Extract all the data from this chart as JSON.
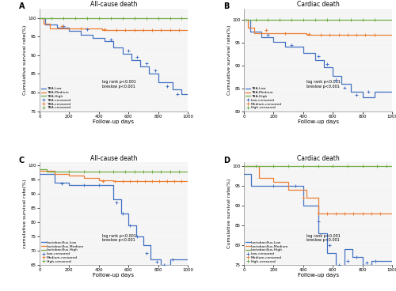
{
  "panels": [
    {
      "label": "A",
      "title": "All-cause death",
      "xlabel": "Follow-up days",
      "ylabel": "Cumulative survival rate(%)",
      "xlim": [
        0,
        1000
      ],
      "ylim": [
        0.75,
        1.025
      ],
      "yticks": [
        0.75,
        0.8,
        0.85,
        0.9,
        0.95,
        1.0
      ],
      "ytick_labels": [
        "75",
        "80",
        "85",
        "90",
        "95",
        "100"
      ],
      "xticks": [
        0,
        200,
        400,
        600,
        800,
        1000
      ],
      "lines": [
        {
          "name": "TBA-Low",
          "color": "#4472C4",
          "x": [
            0,
            40,
            40,
            120,
            120,
            200,
            200,
            280,
            280,
            360,
            360,
            440,
            440,
            500,
            500,
            560,
            560,
            620,
            620,
            680,
            680,
            740,
            740,
            800,
            800,
            900,
            900,
            960,
            960,
            1000
          ],
          "y": [
            1.0,
            1.0,
            0.983,
            0.983,
            0.974,
            0.974,
            0.965,
            0.965,
            0.956,
            0.956,
            0.947,
            0.947,
            0.938,
            0.938,
            0.92,
            0.92,
            0.905,
            0.905,
            0.888,
            0.888,
            0.87,
            0.87,
            0.852,
            0.852,
            0.828,
            0.828,
            0.808,
            0.808,
            0.795,
            0.795
          ]
        },
        {
          "name": "TBA-Medium",
          "color": "#ED7D31",
          "x": [
            0,
            25,
            25,
            70,
            70,
            420,
            420,
            1000
          ],
          "y": [
            1.0,
            1.0,
            0.984,
            0.984,
            0.972,
            0.972,
            0.967,
            0.967
          ]
        },
        {
          "name": "TBA-High",
          "color": "#70AD47",
          "x": [
            0,
            1000
          ],
          "y": [
            1.0,
            1.0
          ]
        }
      ],
      "censored": [
        {
          "color": "#4472C4",
          "x": [
            160,
            320,
            480,
            600,
            660,
            720,
            780,
            860,
            930
          ],
          "y": [
            0.978,
            0.969,
            0.942,
            0.912,
            0.896,
            0.879,
            0.86,
            0.818,
            0.795
          ]
        },
        {
          "color": "#ED7D31",
          "x": [
            150,
            280,
            440,
            520,
            580,
            640,
            700,
            760,
            820,
            880,
            940
          ],
          "y": [
            0.978,
            0.972,
            0.969,
            0.967,
            0.967,
            0.967,
            0.967,
            0.967,
            0.967,
            0.967,
            0.967
          ]
        },
        {
          "color": "#70AD47",
          "x": [
            80,
            160,
            240,
            320,
            400,
            480,
            560,
            640,
            720,
            800,
            880,
            960
          ],
          "y": [
            1.0,
            1.0,
            1.0,
            1.0,
            1.0,
            1.0,
            1.0,
            1.0,
            1.0,
            1.0,
            1.0,
            1.0
          ]
        }
      ],
      "legend_lines": [
        "TBA-Low",
        "TBA-Medium",
        "TBA-High"
      ],
      "legend_censored": [
        "TBA-censored",
        "TBA-censored",
        "TBA-censored"
      ],
      "stat_text": "log rank p<0.001\nbreslow p<0.001",
      "stat_x": 0.42,
      "stat_y": 0.22
    },
    {
      "label": "B",
      "title": "Cardiac death",
      "xlabel": "Follow-up days",
      "ylabel": "Cumulative survival rate(%)",
      "xlim": [
        0,
        1000
      ],
      "ylim": [
        0.8,
        1.025
      ],
      "yticks": [
        0.8,
        0.85,
        0.9,
        0.95,
        1.0
      ],
      "ytick_labels": [
        "80",
        "85",
        "90",
        "95",
        "100"
      ],
      "xticks": [
        0,
        200,
        400,
        600,
        800,
        1000
      ],
      "lines": [
        {
          "name": "TBA-Low",
          "color": "#4472C4",
          "x": [
            0,
            40,
            40,
            120,
            120,
            200,
            200,
            280,
            280,
            400,
            400,
            480,
            480,
            540,
            540,
            600,
            600,
            660,
            660,
            720,
            720,
            800,
            800,
            880,
            880,
            1000
          ],
          "y": [
            1.0,
            1.0,
            0.974,
            0.974,
            0.963,
            0.963,
            0.952,
            0.952,
            0.941,
            0.941,
            0.928,
            0.928,
            0.913,
            0.913,
            0.896,
            0.896,
            0.878,
            0.878,
            0.86,
            0.86,
            0.843,
            0.843,
            0.83,
            0.83,
            0.843,
            0.843
          ]
        },
        {
          "name": "TBA-Medium",
          "color": "#ED7D31",
          "x": [
            0,
            25,
            25,
            70,
            70,
            420,
            420,
            1000
          ],
          "y": [
            1.0,
            1.0,
            0.984,
            0.984,
            0.972,
            0.972,
            0.967,
            0.967
          ]
        },
        {
          "name": "TBA-High",
          "color": "#70AD47",
          "x": [
            0,
            1000
          ],
          "y": [
            1.0,
            1.0
          ]
        }
      ],
      "censored": [
        {
          "color": "#4472C4",
          "x": [
            160,
            320,
            500,
            560,
            620,
            680,
            760,
            840
          ],
          "y": [
            0.968,
            0.946,
            0.92,
            0.904,
            0.869,
            0.851,
            0.836,
            0.843
          ]
        },
        {
          "color": "#ED7D31",
          "x": [
            150,
            280,
            440,
            520,
            580,
            640,
            700,
            760,
            820,
            880
          ],
          "y": [
            0.978,
            0.972,
            0.969,
            0.967,
            0.967,
            0.967,
            0.967,
            0.967,
            0.967,
            0.967
          ]
        },
        {
          "color": "#70AD47",
          "x": [
            80,
            160,
            240,
            320,
            400,
            480,
            560,
            640,
            720,
            800,
            880
          ],
          "y": [
            1.0,
            1.0,
            1.0,
            1.0,
            1.0,
            1.0,
            1.0,
            1.0,
            1.0,
            1.0,
            1.0
          ]
        }
      ],
      "legend_lines": [
        "TBA-Low",
        "TBA-Medium",
        "TBA-High"
      ],
      "legend_censored": [
        "Low-censored",
        "Medium-censored",
        "High-censored"
      ],
      "stat_text": "log rank p<0.001\nbreslow p<0.001",
      "stat_x": 0.42,
      "stat_y": 0.22
    },
    {
      "label": "C",
      "title": "All-cause death",
      "xlabel": "Follow-up days",
      "ylabel": "cumulative survival rate(%)",
      "xlim": [
        0,
        1000
      ],
      "ylim": [
        65,
        101
      ],
      "yticks": [
        65,
        70,
        75,
        80,
        85,
        90,
        95,
        100
      ],
      "ytick_labels": [
        "65",
        "70",
        "75",
        "80",
        "85",
        "90",
        "95",
        "100"
      ],
      "xticks": [
        0,
        200,
        400,
        600,
        800,
        1000
      ],
      "lines": [
        {
          "name": "Lactobacillus-Low",
          "color": "#4472C4",
          "x": [
            0,
            100,
            100,
            200,
            200,
            500,
            500,
            550,
            550,
            600,
            600,
            650,
            650,
            700,
            700,
            750,
            750,
            820,
            820,
            880,
            880,
            1000
          ],
          "y": [
            97,
            97,
            94,
            94,
            93,
            93,
            88,
            88,
            83,
            83,
            79,
            79,
            75,
            75,
            72,
            72,
            67,
            67,
            65,
            65,
            67,
            67
          ]
        },
        {
          "name": "Lactobacillus-Medium",
          "color": "#ED7D31",
          "x": [
            0,
            100,
            100,
            200,
            200,
            300,
            300,
            400,
            400,
            500,
            500,
            1000
          ],
          "y": [
            98,
            98,
            97,
            97,
            96.5,
            96.5,
            95.5,
            95.5,
            94.8,
            94.8,
            94.5,
            94.5
          ]
        },
        {
          "name": "Lactobacillus-High",
          "color": "#70AD47",
          "x": [
            0,
            50,
            50,
            1000
          ],
          "y": [
            98.5,
            98.5,
            97.8,
            97.8
          ]
        }
      ],
      "censored": [
        {
          "color": "#4472C4",
          "x": [
            150,
            300,
            400,
            520,
            560,
            610,
            660,
            720,
            790,
            840,
            900
          ],
          "y": [
            93.5,
            93,
            93,
            87,
            83,
            79,
            75,
            69,
            66,
            65,
            67
          ]
        },
        {
          "color": "#ED7D31",
          "x": [
            430,
            510,
            560,
            610,
            660,
            710,
            760,
            810,
            860,
            910,
            960
          ],
          "y": [
            94.5,
            94.5,
            94.5,
            94.5,
            94.5,
            94.5,
            94.5,
            94.5,
            94.5,
            94.5,
            94.5
          ]
        },
        {
          "color": "#70AD47",
          "x": [
            200,
            300,
            400,
            500,
            580,
            640,
            700,
            760,
            820,
            880,
            940
          ],
          "y": [
            97.8,
            97.8,
            97.8,
            97.8,
            97.8,
            97.8,
            97.8,
            97.8,
            97.8,
            97.8,
            97.8
          ]
        }
      ],
      "legend_lines": [
        "Lactobacillus-Low",
        "Lactobacillus-Medium",
        "Lactobacillus-High"
      ],
      "legend_censored": [
        "Low-censored",
        "Medium-censored",
        "High-censored"
      ],
      "stat_text": "log rank p<0.001\nbreslow p<0.001",
      "stat_x": 0.42,
      "stat_y": 0.22
    },
    {
      "label": "D",
      "title": "Cardiac death",
      "xlabel": "Follow-up days",
      "ylabel": "Cumulative survival rate(%)",
      "xlim": [
        0,
        1000
      ],
      "ylim": [
        75,
        101
      ],
      "yticks": [
        75,
        80,
        85,
        90,
        95,
        100
      ],
      "ytick_labels": [
        "75",
        "80",
        "85",
        "90",
        "95",
        "100"
      ],
      "xticks": [
        0,
        200,
        400,
        600,
        800,
        1000
      ],
      "lines": [
        {
          "name": "Lactobacillus-Low",
          "color": "#4472C4",
          "x": [
            0,
            50,
            50,
            400,
            400,
            500,
            500,
            560,
            560,
            620,
            620,
            680,
            680,
            730,
            730,
            800,
            800,
            860,
            860,
            1000
          ],
          "y": [
            98,
            98,
            95,
            95,
            90,
            90,
            83,
            83,
            78,
            78,
            73,
            73,
            79,
            79,
            77,
            77,
            75,
            75,
            76,
            76
          ]
        },
        {
          "name": "Lactobacillus-Medium",
          "color": "#ED7D31",
          "x": [
            0,
            100,
            100,
            200,
            200,
            300,
            300,
            420,
            420,
            500,
            500,
            1000
          ],
          "y": [
            100,
            100,
            97,
            97,
            96,
            96,
            94,
            94,
            92,
            92,
            88,
            88
          ]
        },
        {
          "name": "Lactobacillus-High",
          "color": "#70AD47",
          "x": [
            0,
            1000
          ],
          "y": [
            100,
            100
          ]
        }
      ],
      "censored": [
        {
          "color": "#4472C4",
          "x": [
            200,
            350,
            500,
            580,
            640,
            700,
            760,
            830,
            890
          ],
          "y": [
            95,
            95,
            86,
            80,
            75,
            76,
            77,
            75.5,
            76
          ]
        },
        {
          "color": "#ED7D31",
          "x": [
            400,
            500,
            560,
            620,
            680,
            740,
            800,
            860,
            920
          ],
          "y": [
            92,
            88,
            88,
            88,
            88,
            88,
            88,
            88,
            88
          ]
        },
        {
          "color": "#70AD47",
          "x": [
            80,
            200,
            300,
            400,
            500,
            600,
            700,
            800,
            900,
            960
          ],
          "y": [
            100,
            100,
            100,
            100,
            100,
            100,
            100,
            100,
            100,
            100
          ]
        }
      ],
      "legend_lines": [
        "Lactobacillus-Low",
        "Lactobacillus-Medium",
        "Lactobacillus-High"
      ],
      "legend_censored": [
        "Low-censored",
        "Medium-censored",
        "High-censored"
      ],
      "stat_text": "log rank p<0.001\nbreslow p<0.001",
      "stat_x": 0.42,
      "stat_y": 0.22
    }
  ],
  "colors": {
    "low": "#4472C4",
    "medium": "#ED7D31",
    "high": "#70AD47"
  },
  "bg_color": "#f0f0f0"
}
